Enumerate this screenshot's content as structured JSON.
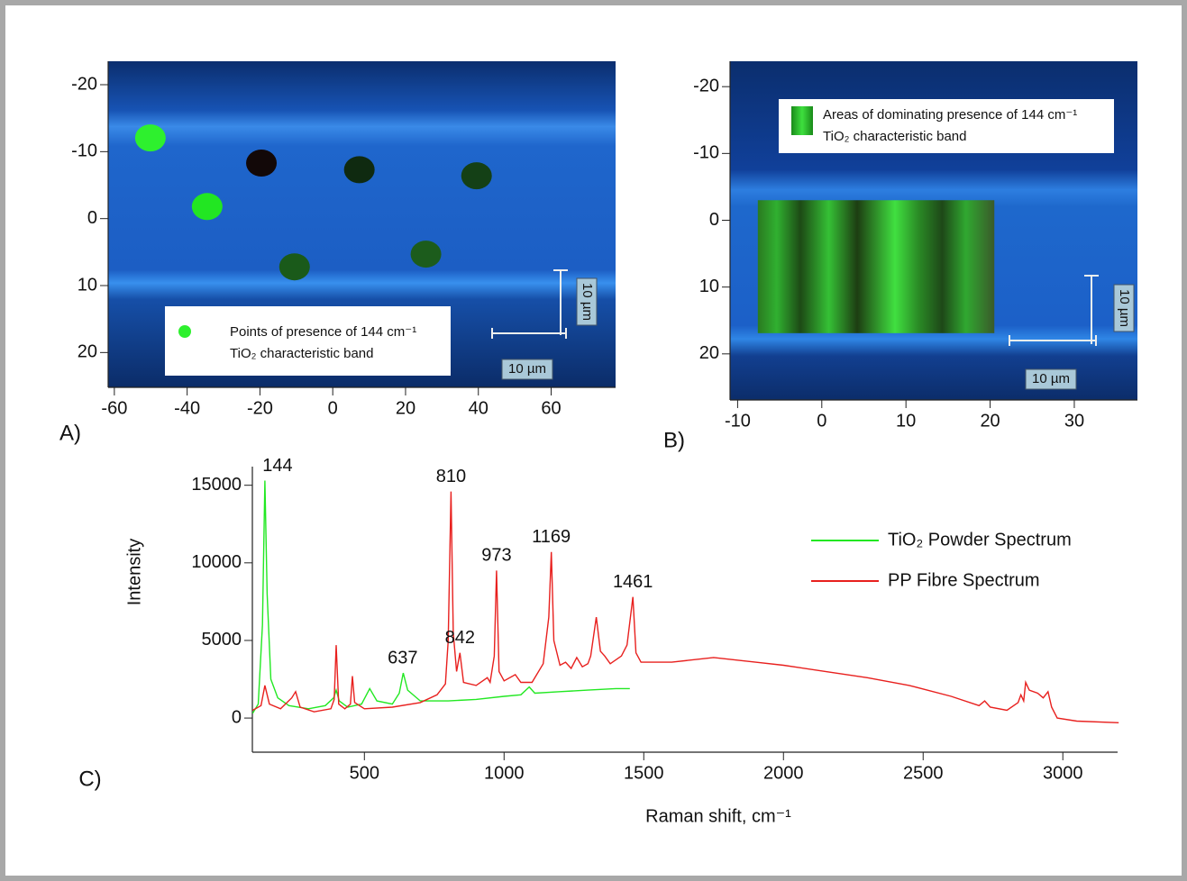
{
  "chart_data": [
    {
      "type": "scatter",
      "panel_label": "A)",
      "xlim": [
        -61.7,
        77.7
      ],
      "ylim": [
        25.2,
        -23.5
      ],
      "xticks": [
        -60,
        -40,
        -20,
        0,
        20,
        40,
        60
      ],
      "yticks": [
        -20,
        -10,
        0,
        10,
        20
      ],
      "series": [
        {
          "x": [
            -50.1,
            -34.5,
            -19.6,
            7.3,
            39.5,
            -10.5,
            25.6
          ],
          "values": [
            -12.05,
            -1.8,
            -8.3,
            -7.3,
            -6.4,
            7.2,
            5.3
          ],
          "colors": [
            "#2ef02e",
            "#22e622",
            "#120808",
            "#0f2a10",
            "#144016",
            "#1a5a1a",
            "#1c5c1c"
          ]
        }
      ],
      "legend": [
        "Points of presence of 144 cm⁻¹",
        "TiO₂ characteristic band"
      ],
      "legend_color": "#2ef02e",
      "scale_labels": [
        "10 µm",
        "10 µm"
      ]
    },
    {
      "type": "map",
      "panel_label": "B)",
      "xlim": [
        -10.9,
        37.5
      ],
      "ylim": [
        26.9,
        -23.8
      ],
      "xticks": [
        -10,
        0,
        10,
        20,
        30
      ],
      "yticks": [
        -20,
        -10,
        0,
        10,
        20
      ],
      "map_x": [
        -7.6,
        20.5
      ],
      "map_y": [
        16.9,
        -3.0
      ],
      "legend": [
        "Areas of dominating presence of 144 cm⁻¹",
        "TiO₂ characteristic band"
      ],
      "scale_labels": [
        "10 µm",
        "10 µm"
      ]
    },
    {
      "type": "line",
      "panel_label": "C)",
      "x_label": "Raman shift, cm⁻¹",
      "y_label": "Intensity",
      "xlim": [
        99,
        3196
      ],
      "ylim": [
        -2200,
        16200
      ],
      "xticks": [
        500,
        1000,
        1500,
        2000,
        2500,
        3000
      ],
      "yticks": [
        0,
        5000,
        10000,
        15000
      ],
      "peak_labels": [
        144,
        637,
        810,
        842,
        973,
        1169,
        1461
      ],
      "series": [
        {
          "name": "TiO₂ Powder Spectrum",
          "color": "#22e822",
          "x": [
            100,
            120,
            135,
            144,
            152,
            165,
            190,
            230,
            300,
            360,
            390,
            399,
            410,
            440,
            490,
            519,
            545,
            600,
            625,
            639,
            655,
            700,
            800,
            900,
            1000,
            1060,
            1090,
            1110,
            1200,
            1300,
            1400,
            1450
          ],
          "values": [
            300,
            900,
            6000,
            15300,
            8000,
            2500,
            1300,
            800,
            600,
            800,
            1300,
            1800,
            1100,
            700,
            900,
            1900,
            1100,
            900,
            1600,
            2900,
            1800,
            1100,
            1100,
            1200,
            1400,
            1500,
            2000,
            1600,
            1700,
            1800,
            1900,
            1900
          ]
        },
        {
          "name": "PP Fibre Spectrum",
          "color": "#e8201e",
          "x": [
            100,
            130,
            144,
            160,
            200,
            240,
            254,
            270,
            320,
            380,
            392,
            399,
            408,
            430,
            450,
            457,
            465,
            500,
            600,
            700,
            760,
            790,
            800,
            810,
            818,
            830,
            842,
            855,
            900,
            940,
            950,
            965,
            973,
            982,
            1000,
            1040,
            1060,
            1100,
            1140,
            1160,
            1169,
            1178,
            1200,
            1220,
            1240,
            1260,
            1280,
            1300,
            1310,
            1330,
            1345,
            1360,
            1380,
            1420,
            1440,
            1461,
            1472,
            1490,
            1600,
            1750,
            1900,
            2000,
            2150,
            2300,
            2450,
            2600,
            2700,
            2720,
            2740,
            2800,
            2840,
            2850,
            2860,
            2867,
            2880,
            2910,
            2930,
            2947,
            2960,
            2980,
            3050,
            3200
          ],
          "values": [
            500,
            800,
            2100,
            900,
            600,
            1300,
            1700,
            700,
            400,
            600,
            1200,
            4700,
            900,
            600,
            900,
            2700,
            1000,
            600,
            700,
            1000,
            1500,
            2200,
            5000,
            14600,
            5500,
            3000,
            4200,
            2300,
            2100,
            2600,
            2300,
            4000,
            9500,
            3000,
            2400,
            2800,
            2300,
            2300,
            3500,
            6500,
            10700,
            5000,
            3400,
            3600,
            3200,
            3900,
            3300,
            3500,
            4000,
            6500,
            4300,
            4000,
            3500,
            4000,
            4700,
            7800,
            4200,
            3600,
            3600,
            3900,
            3600,
            3400,
            3000,
            2600,
            2100,
            1400,
            800,
            1100,
            700,
            500,
            1000,
            1500,
            1100,
            2300,
            1800,
            1600,
            1300,
            1700,
            700,
            0,
            -200,
            -300
          ]
        }
      ]
    }
  ]
}
